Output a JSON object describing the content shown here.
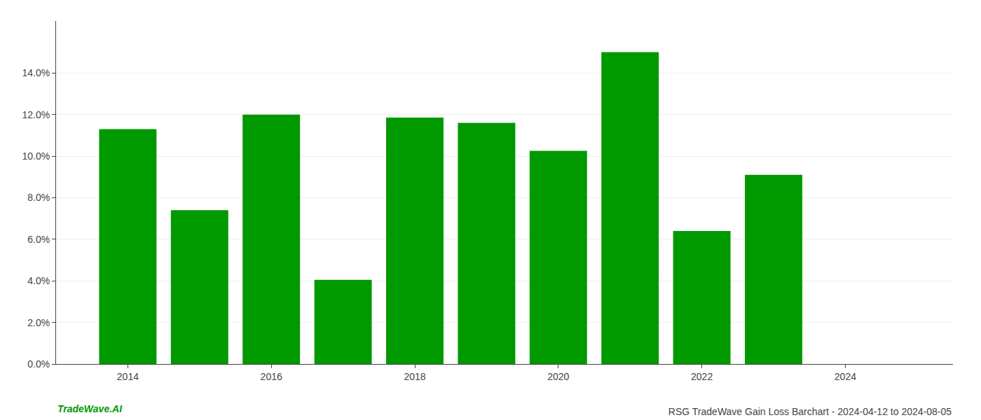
{
  "chart_data": {
    "type": "bar",
    "title": "RSG TradeWave Gain Loss Barchart - 2024-04-12 to 2024-08-05",
    "annotations": [
      "TradeWave.AI"
    ],
    "x": [
      2014,
      2015,
      2016,
      2017,
      2018,
      2019,
      2020,
      2021,
      2022,
      2023
    ],
    "values": [
      0.113,
      0.074,
      0.12,
      0.0405,
      0.1185,
      0.116,
      0.1025,
      0.15,
      0.064,
      0.091
    ],
    "color": "#009900",
    "xlim": [
      2013.0,
      2025.5
    ],
    "xticks": [
      2014,
      2016,
      2018,
      2020,
      2022,
      2024
    ],
    "ylim": [
      0.0,
      0.165
    ],
    "yticks": [
      {
        "value": 0.0,
        "label": "0.0%"
      },
      {
        "value": 0.02,
        "label": "2.0%"
      },
      {
        "value": 0.04,
        "label": "4.0%"
      },
      {
        "value": 0.06,
        "label": "6.0%"
      },
      {
        "value": 0.08,
        "label": "8.0%"
      },
      {
        "value": 0.1,
        "label": "10.0%"
      },
      {
        "value": 0.12,
        "label": "12.0%"
      },
      {
        "value": 0.14,
        "label": "14.0%"
      }
    ],
    "grid": true
  }
}
